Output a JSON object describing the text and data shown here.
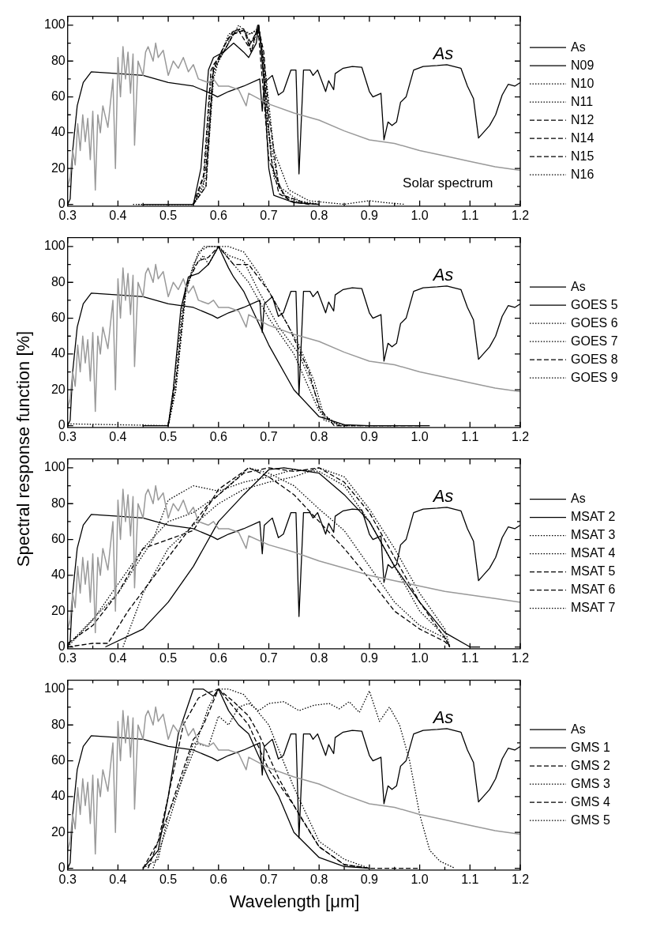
{
  "chart_data": [
    {
      "type": "line",
      "legend": "right",
      "marker": "none",
      "grid": false,
      "xlim": [
        0.3,
        1.2
      ],
      "ylim": [
        -1,
        105
      ],
      "xticks": [
        0.3,
        {
          "value": 0.35,
          "label": null
        },
        0.4,
        {
          "value": 0.45,
          "label": null
        },
        0.5,
        {
          "value": 0.55,
          "label": null
        },
        0.6,
        {
          "value": 0.65,
          "label": null
        },
        0.7,
        {
          "value": 0.75,
          "label": null
        },
        0.8,
        {
          "value": 0.85,
          "label": null
        },
        0.9,
        {
          "value": 0.95,
          "label": null
        },
        {
          "value": 1.0,
          "label": "1.0"
        },
        {
          "value": 1.05,
          "label": null
        },
        1.1,
        {
          "value": 1.15,
          "label": null
        },
        1.2
      ],
      "yticks": [
        0,
        {
          "value": 10,
          "label": null
        },
        20,
        {
          "value": 30,
          "label": null
        },
        40,
        {
          "value": 50,
          "label": null
        },
        60,
        {
          "value": 70,
          "label": null
        },
        80,
        {
          "value": 90,
          "label": null
        },
        100
      ],
      "annotations": [
        "As",
        "Solar spectrum"
      ],
      "series": [
        {
          "color": "#999999",
          "line_style": "solid",
          "x": [
            0.3,
            0.305,
            0.31,
            0.315,
            0.32,
            0.325,
            0.33,
            0.335,
            0.34,
            0.345,
            0.35,
            0.355,
            0.36,
            0.365,
            0.37,
            0.38,
            0.39,
            0.395,
            0.4,
            0.405,
            0.41,
            0.415,
            0.42,
            0.425,
            0.43,
            0.433,
            0.44,
            0.45,
            0.455,
            0.46,
            0.47,
            0.475,
            0.48,
            0.49,
            0.5,
            0.51,
            0.52,
            0.53,
            0.54,
            0.55,
            0.56,
            0.58,
            0.59,
            0.6,
            0.62,
            0.64,
            0.655,
            0.66,
            0.7,
            0.75,
            0.8,
            0.85,
            0.9,
            0.95,
            1.0,
            1.05,
            1.1,
            1.15,
            1.2
          ],
          "values": [
            10,
            15,
            30,
            22,
            45,
            30,
            50,
            35,
            48,
            25,
            52,
            8,
            50,
            40,
            55,
            43,
            70,
            20,
            82,
            60,
            88,
            70,
            85,
            62,
            84,
            33,
            80,
            72,
            85,
            88,
            80,
            90,
            82,
            86,
            72,
            80,
            76,
            82,
            74,
            78,
            70,
            68,
            70,
            66,
            66,
            64,
            55,
            62,
            56,
            51,
            47,
            41,
            36,
            34,
            30,
            27,
            24,
            21,
            19
          ]
        },
        {
          "name": "As",
          "color": "#000000",
          "line_style": "solid",
          "x": [
            0.3,
            0.305,
            0.31,
            0.319,
            0.331,
            0.347,
            0.4,
            0.45,
            0.5,
            0.55,
            0.588,
            0.598,
            0.62,
            0.65,
            0.682,
            0.687,
            0.691,
            0.707,
            0.719,
            0.729,
            0.744,
            0.754,
            0.76,
            0.769,
            0.782,
            0.788,
            0.797,
            0.813,
            0.819,
            0.829,
            0.832,
            0.848,
            0.866,
            0.885,
            0.9,
            0.907,
            0.923,
            0.929,
            0.937,
            0.945,
            0.954,
            0.962,
            0.973,
            0.981,
            0.988,
            1.007,
            1.035,
            1.054,
            1.082,
            1.095,
            1.107,
            1.117,
            1.139,
            1.151,
            1.164,
            1.176,
            1.189,
            1.2
          ],
          "values": [
            0,
            3,
            30,
            55,
            68,
            74,
            73,
            72,
            68,
            66,
            61.5,
            60,
            63,
            66,
            70,
            52,
            68,
            72,
            61,
            63,
            75,
            75,
            17,
            75,
            75,
            72,
            75,
            63,
            69,
            64,
            73,
            76,
            77,
            76.5,
            63,
            60,
            62,
            36,
            46,
            44,
            46,
            57,
            60,
            68,
            75,
            77,
            77.5,
            78,
            76,
            66,
            59,
            37,
            44,
            50,
            61,
            67,
            66,
            68
          ]
        },
        {
          "name": "N09",
          "color": "#000000",
          "line_style": "solid",
          "x": [
            0.45,
            0.55,
            0.565,
            0.58,
            0.59,
            0.61,
            0.63,
            0.65,
            0.66,
            0.675,
            0.68,
            0.69,
            0.7,
            0.71,
            0.75,
            0.8
          ],
          "values": [
            0,
            0,
            20,
            75,
            82,
            85,
            90,
            85,
            82,
            90,
            100,
            70,
            20,
            5,
            1,
            0
          ]
        },
        {
          "name": "N10",
          "color": "#000000",
          "line_style": "dotted",
          "x": [
            0.44,
            0.55,
            0.57,
            0.585,
            0.6,
            0.62,
            0.64,
            0.66,
            0.675,
            0.685,
            0.695,
            0.71,
            0.73,
            0.76,
            0.8
          ],
          "values": [
            0,
            0,
            10,
            70,
            80,
            95,
            98,
            95,
            97,
            90,
            50,
            15,
            5,
            1,
            0
          ]
        },
        {
          "name": "N11",
          "color": "#000000",
          "line_style": "dotted",
          "x": [
            0.55,
            0.575,
            0.59,
            0.6,
            0.62,
            0.64,
            0.655,
            0.665,
            0.675,
            0.68,
            0.69,
            0.7,
            0.72,
            0.76,
            0.8
          ],
          "values": [
            0,
            10,
            70,
            80,
            90,
            100,
            96,
            85,
            95,
            99,
            80,
            40,
            10,
            2,
            0
          ]
        },
        {
          "name": "N12",
          "color": "#000000",
          "line_style": "dashed",
          "x": [
            0.55,
            0.57,
            0.585,
            0.6,
            0.62,
            0.64,
            0.66,
            0.675,
            0.68,
            0.69,
            0.705,
            0.72,
            0.75,
            0.8
          ],
          "values": [
            0,
            15,
            75,
            82,
            93,
            97,
            88,
            96,
            100,
            75,
            25,
            6,
            1,
            0
          ]
        },
        {
          "name": "N14",
          "color": "#000000",
          "line_style": "dashed",
          "x": [
            0.55,
            0.575,
            0.59,
            0.61,
            0.63,
            0.65,
            0.665,
            0.68,
            0.69,
            0.7,
            0.72,
            0.74,
            0.78
          ],
          "values": [
            0,
            20,
            78,
            85,
            95,
            97,
            90,
            98,
            85,
            50,
            10,
            2,
            0
          ]
        },
        {
          "name": "N15",
          "color": "#000000",
          "line_style": "dashed",
          "x": [
            0.55,
            0.575,
            0.59,
            0.61,
            0.63,
            0.65,
            0.665,
            0.678,
            0.69,
            0.7,
            0.73,
            0.78
          ],
          "values": [
            0,
            10,
            75,
            88,
            97,
            98,
            85,
            100,
            60,
            25,
            5,
            0
          ]
        },
        {
          "name": "N16",
          "color": "#000000",
          "line_style": "dotted",
          "x": [
            0.43,
            0.55,
            0.575,
            0.59,
            0.61,
            0.63,
            0.65,
            0.665,
            0.68,
            0.695,
            0.71,
            0.74,
            0.78,
            0.85,
            0.9,
            0.93,
            0.97
          ],
          "values": [
            0,
            0,
            15,
            75,
            85,
            96,
            97,
            95,
            99,
            70,
            30,
            8,
            2,
            0,
            2,
            1,
            0
          ]
        }
      ]
    },
    {
      "type": "line",
      "legend": "right",
      "marker": "none",
      "grid": false,
      "ylabel": "Spectral response function [%]",
      "xlim": [
        0.3,
        1.2
      ],
      "ylim": [
        -1,
        105
      ],
      "xticks": [
        0.3,
        {
          "value": 0.35,
          "label": null
        },
        0.4,
        {
          "value": 0.45,
          "label": null
        },
        0.5,
        {
          "value": 0.55,
          "label": null
        },
        0.6,
        {
          "value": 0.65,
          "label": null
        },
        0.7,
        {
          "value": 0.75,
          "label": null
        },
        0.8,
        {
          "value": 0.85,
          "label": null
        },
        0.9,
        {
          "value": 0.95,
          "label": null
        },
        {
          "value": 1.0,
          "label": "1.0"
        },
        {
          "value": 1.05,
          "label": null
        },
        1.1,
        {
          "value": 1.15,
          "label": null
        },
        1.2
      ],
      "yticks": [
        0,
        {
          "value": 10,
          "label": null
        },
        20,
        {
          "value": 30,
          "label": null
        },
        40,
        {
          "value": 50,
          "label": null
        },
        60,
        {
          "value": 70,
          "label": null
        },
        80,
        {
          "value": 90,
          "label": null
        },
        100
      ],
      "annotations": [
        "As"
      ],
      "series": [
        {
          "color": "#999999",
          "line_style": "solid",
          "x": [
            0.3,
            0.305,
            0.31,
            0.315,
            0.32,
            0.325,
            0.33,
            0.335,
            0.34,
            0.345,
            0.35,
            0.355,
            0.36,
            0.365,
            0.37,
            0.38,
            0.39,
            0.395,
            0.4,
            0.405,
            0.41,
            0.415,
            0.42,
            0.425,
            0.43,
            0.433,
            0.44,
            0.45,
            0.455,
            0.46,
            0.47,
            0.475,
            0.48,
            0.49,
            0.5,
            0.51,
            0.52,
            0.53,
            0.54,
            0.55,
            0.56,
            0.58,
            0.59,
            0.6,
            0.62,
            0.64,
            0.655,
            0.66,
            0.7,
            0.75,
            0.8,
            0.85,
            0.9,
            0.95,
            1.0,
            1.05,
            1.1,
            1.15,
            1.2
          ],
          "values": [
            10,
            15,
            30,
            22,
            45,
            30,
            50,
            35,
            48,
            25,
            52,
            8,
            50,
            40,
            55,
            43,
            70,
            20,
            82,
            60,
            88,
            70,
            85,
            62,
            84,
            33,
            80,
            72,
            85,
            88,
            80,
            90,
            82,
            86,
            72,
            80,
            76,
            82,
            74,
            78,
            70,
            68,
            70,
            66,
            66,
            64,
            55,
            62,
            56,
            51,
            47,
            41,
            36,
            34,
            30,
            27,
            24,
            21,
            19
          ]
        },
        {
          "name": "As",
          "color": "#000000",
          "line_style": "solid",
          "x": [
            0.3,
            0.305,
            0.31,
            0.319,
            0.331,
            0.347,
            0.4,
            0.45,
            0.5,
            0.55,
            0.588,
            0.598,
            0.62,
            0.65,
            0.682,
            0.687,
            0.691,
            0.707,
            0.719,
            0.729,
            0.744,
            0.754,
            0.76,
            0.769,
            0.782,
            0.788,
            0.797,
            0.813,
            0.819,
            0.829,
            0.832,
            0.848,
            0.866,
            0.885,
            0.9,
            0.907,
            0.923,
            0.929,
            0.937,
            0.945,
            0.954,
            0.962,
            0.973,
            0.981,
            0.988,
            1.007,
            1.035,
            1.054,
            1.082,
            1.095,
            1.107,
            1.117,
            1.139,
            1.151,
            1.164,
            1.176,
            1.189,
            1.2
          ],
          "values": [
            0,
            3,
            30,
            55,
            68,
            74,
            73,
            72,
            68,
            66,
            61.5,
            60,
            63,
            66,
            70,
            52,
            68,
            72,
            61,
            63,
            75,
            75,
            17,
            75,
            75,
            72,
            75,
            63,
            69,
            64,
            73,
            76,
            77,
            76.5,
            63,
            60,
            62,
            36,
            46,
            44,
            46,
            57,
            60,
            68,
            75,
            77,
            77.5,
            78,
            76,
            66,
            59,
            37,
            44,
            50,
            61,
            67,
            66,
            68
          ]
        },
        {
          "name": "GOES 5",
          "color": "#000000",
          "line_style": "solid",
          "x": [
            0.45,
            0.5,
            0.51,
            0.525,
            0.54,
            0.56,
            0.58,
            0.6,
            0.62,
            0.63,
            0.65,
            0.7,
            0.75,
            0.8,
            0.85,
            0.9,
            1.02
          ],
          "values": [
            0,
            0,
            20,
            65,
            83,
            85,
            90,
            100,
            88,
            83,
            75,
            45,
            20,
            5,
            0.5,
            0,
            0
          ]
        },
        {
          "name": "GOES 6",
          "color": "#000000",
          "line_style": "dotted",
          "x": [
            0.3,
            0.5,
            0.51,
            0.53,
            0.55,
            0.57,
            0.6,
            0.63,
            0.66,
            0.7,
            0.75,
            0.8,
            0.84,
            0.95
          ],
          "values": [
            1,
            0,
            20,
            70,
            90,
            100,
            100,
            90,
            80,
            60,
            40,
            8,
            0,
            0
          ]
        },
        {
          "name": "GOES 7",
          "color": "#000000",
          "line_style": "dotted",
          "x": [
            0.5,
            0.515,
            0.535,
            0.56,
            0.58,
            0.62,
            0.65,
            0.68,
            0.72,
            0.76,
            0.79,
            0.81,
            0.84
          ],
          "values": [
            0,
            20,
            75,
            97,
            100,
            100,
            97,
            85,
            65,
            45,
            25,
            5,
            0
          ]
        },
        {
          "name": "GOES 8",
          "color": "#000000",
          "line_style": "dashed",
          "x": [
            0.5,
            0.515,
            0.535,
            0.56,
            0.58,
            0.6,
            0.63,
            0.66,
            0.7,
            0.74,
            0.78,
            0.8,
            0.83,
            1.0
          ],
          "values": [
            0,
            25,
            78,
            92,
            94,
            100,
            90,
            90,
            75,
            55,
            30,
            10,
            0,
            0
          ]
        },
        {
          "name": "GOES 9",
          "color": "#000000",
          "line_style": "dotted",
          "x": [
            0.5,
            0.515,
            0.535,
            0.55,
            0.57,
            0.58,
            0.6,
            0.62,
            0.65,
            0.68,
            0.72,
            0.76,
            0.79,
            0.81,
            0.85
          ],
          "values": [
            0,
            20,
            75,
            88,
            95,
            90,
            100,
            95,
            92,
            75,
            55,
            40,
            20,
            3,
            0
          ]
        }
      ]
    },
    {
      "type": "line",
      "legend": "right",
      "marker": "none",
      "grid": false,
      "xlim": [
        0.3,
        1.2
      ],
      "ylim": [
        -1,
        105
      ],
      "xticks": [
        0.3,
        {
          "value": 0.35,
          "label": null
        },
        0.4,
        {
          "value": 0.45,
          "label": null
        },
        0.5,
        {
          "value": 0.55,
          "label": null
        },
        0.6,
        {
          "value": 0.65,
          "label": null
        },
        0.7,
        {
          "value": 0.75,
          "label": null
        },
        0.8,
        {
          "value": 0.85,
          "label": null
        },
        0.9,
        {
          "value": 0.95,
          "label": null
        },
        {
          "value": 1.0,
          "label": "1.0"
        },
        {
          "value": 1.05,
          "label": null
        },
        1.1,
        {
          "value": 1.15,
          "label": null
        },
        1.2
      ],
      "yticks": [
        0,
        {
          "value": 10,
          "label": null
        },
        20,
        {
          "value": 30,
          "label": null
        },
        40,
        {
          "value": 50,
          "label": null
        },
        60,
        {
          "value": 70,
          "label": null
        },
        80,
        {
          "value": 90,
          "label": null
        },
        100
      ],
      "annotations": [
        "As"
      ],
      "series": [
        {
          "color": "#999999",
          "line_style": "solid",
          "x": [
            0.3,
            0.305,
            0.31,
            0.315,
            0.32,
            0.325,
            0.33,
            0.335,
            0.34,
            0.345,
            0.35,
            0.355,
            0.36,
            0.365,
            0.37,
            0.38,
            0.39,
            0.395,
            0.4,
            0.405,
            0.41,
            0.415,
            0.42,
            0.425,
            0.43,
            0.433,
            0.44,
            0.45,
            0.455,
            0.46,
            0.47,
            0.475,
            0.48,
            0.49,
            0.5,
            0.51,
            0.52,
            0.53,
            0.54,
            0.55,
            0.56,
            0.58,
            0.59,
            0.6,
            0.62,
            0.64,
            0.655,
            0.66,
            0.7,
            0.75,
            0.8,
            0.85,
            0.9,
            0.95,
            1.0,
            1.05,
            1.1,
            1.15,
            1.2
          ],
          "values": [
            10,
            15,
            30,
            22,
            45,
            30,
            50,
            35,
            48,
            25,
            52,
            8,
            50,
            40,
            55,
            43,
            70,
            20,
            82,
            60,
            88,
            70,
            85,
            62,
            84,
            33,
            80,
            72,
            85,
            88,
            80,
            90,
            82,
            86,
            72,
            80,
            76,
            82,
            74,
            78,
            70,
            68,
            70,
            66,
            66,
            64,
            55,
            62,
            57,
            53,
            48,
            44,
            40,
            37,
            34,
            31,
            29,
            27,
            25
          ]
        },
        {
          "name": "As",
          "color": "#000000",
          "line_style": "solid",
          "x": [
            0.3,
            0.305,
            0.31,
            0.319,
            0.331,
            0.347,
            0.4,
            0.45,
            0.5,
            0.55,
            0.588,
            0.598,
            0.62,
            0.65,
            0.682,
            0.687,
            0.691,
            0.707,
            0.719,
            0.729,
            0.744,
            0.754,
            0.76,
            0.769,
            0.782,
            0.788,
            0.797,
            0.813,
            0.819,
            0.829,
            0.832,
            0.848,
            0.866,
            0.885,
            0.9,
            0.907,
            0.923,
            0.929,
            0.937,
            0.945,
            0.954,
            0.962,
            0.973,
            0.981,
            0.988,
            1.007,
            1.035,
            1.054,
            1.082,
            1.095,
            1.107,
            1.117,
            1.139,
            1.151,
            1.164,
            1.176,
            1.189,
            1.2
          ],
          "values": [
            0,
            3,
            30,
            55,
            68,
            74,
            73,
            72,
            68,
            66,
            61.5,
            60,
            63,
            66,
            70,
            52,
            68,
            72,
            61,
            63,
            75,
            75,
            17,
            75,
            75,
            72,
            75,
            63,
            69,
            64,
            73,
            76,
            77,
            76.5,
            63,
            60,
            62,
            36,
            46,
            44,
            46,
            57,
            60,
            68,
            75,
            77,
            77.5,
            78,
            76,
            66,
            59,
            37,
            44,
            50,
            61,
            67,
            66,
            68
          ]
        },
        {
          "name": "MSAT 2",
          "color": "#000000",
          "line_style": "solid",
          "x": [
            0.375,
            0.45,
            0.5,
            0.55,
            0.6,
            0.65,
            0.7,
            0.73,
            0.8,
            0.85,
            0.9,
            0.95,
            1.0,
            1.05,
            1.1,
            1.12
          ],
          "values": [
            0,
            10,
            25,
            45,
            70,
            85,
            99,
            100,
            97,
            85,
            70,
            45,
            25,
            8,
            0,
            0
          ]
        },
        {
          "name": "MSAT 3",
          "color": "#000000",
          "line_style": "dotted",
          "x": [
            0.3,
            0.35,
            0.4,
            0.45,
            0.5,
            0.55,
            0.6,
            0.66,
            0.7,
            0.75,
            0.8,
            0.85,
            0.9,
            0.95,
            1.0,
            1.05,
            1.06
          ],
          "values": [
            0,
            15,
            35,
            55,
            70,
            75,
            85,
            100,
            97,
            90,
            77,
            65,
            45,
            25,
            12,
            5,
            0
          ]
        },
        {
          "name": "MSAT 4",
          "color": "#000000",
          "line_style": "dotted",
          "x": [
            0.3,
            0.4,
            0.47,
            0.5,
            0.55,
            0.6,
            0.65,
            0.7,
            0.75,
            0.8,
            0.85,
            0.9,
            0.95,
            1.0,
            1.05,
            1.06
          ],
          "values": [
            1,
            30,
            60,
            82,
            90,
            87,
            92,
            95,
            99,
            98,
            90,
            70,
            45,
            20,
            6,
            0
          ]
        },
        {
          "name": "MSAT 5",
          "color": "#000000",
          "line_style": "dashed",
          "x": [
            0.3,
            0.35,
            0.38,
            0.42,
            0.5,
            0.58,
            0.65,
            0.7,
            0.75,
            0.8,
            0.85,
            0.9,
            0.95,
            1.0,
            1.05,
            1.06
          ],
          "values": [
            0,
            2,
            2,
            20,
            50,
            80,
            97,
            100,
            98,
            100,
            92,
            75,
            50,
            25,
            5,
            0
          ]
        },
        {
          "name": "MSAT 6",
          "color": "#000000",
          "line_style": "dashed",
          "x": [
            0.3,
            0.35,
            0.4,
            0.45,
            0.5,
            0.55,
            0.6,
            0.66,
            0.7,
            0.75,
            0.8,
            0.85,
            0.9,
            0.95,
            1.0,
            1.05,
            1.06
          ],
          "values": [
            2,
            12,
            30,
            55,
            60,
            65,
            88,
            100,
            95,
            85,
            70,
            55,
            38,
            20,
            10,
            3,
            0
          ]
        },
        {
          "name": "MSAT 7",
          "color": "#000000",
          "line_style": "dotted",
          "x": [
            0.41,
            0.45,
            0.5,
            0.55,
            0.6,
            0.65,
            0.7,
            0.75,
            0.8,
            0.85,
            0.9,
            0.95,
            1.0,
            1.05,
            1.06
          ],
          "values": [
            0,
            30,
            55,
            68,
            80,
            88,
            92,
            95,
            100,
            95,
            77,
            55,
            30,
            10,
            0
          ]
        }
      ]
    },
    {
      "type": "line",
      "legend": "right",
      "marker": "none",
      "grid": false,
      "xlabel": "Wavelength [μm]",
      "xlim": [
        0.3,
        1.2
      ],
      "ylim": [
        -1,
        105
      ],
      "xticks": [
        0.3,
        {
          "value": 0.35,
          "label": null
        },
        0.4,
        {
          "value": 0.45,
          "label": null
        },
        0.5,
        {
          "value": 0.55,
          "label": null
        },
        0.6,
        {
          "value": 0.65,
          "label": null
        },
        0.7,
        {
          "value": 0.75,
          "label": null
        },
        0.8,
        {
          "value": 0.85,
          "label": null
        },
        0.9,
        {
          "value": 0.95,
          "label": null
        },
        {
          "value": 1.0,
          "label": "1.0"
        },
        {
          "value": 1.05,
          "label": null
        },
        1.1,
        {
          "value": 1.15,
          "label": null
        },
        1.2
      ],
      "yticks": [
        0,
        {
          "value": 10,
          "label": null
        },
        20,
        {
          "value": 30,
          "label": null
        },
        40,
        {
          "value": 50,
          "label": null
        },
        60,
        {
          "value": 70,
          "label": null
        },
        80,
        {
          "value": 90,
          "label": null
        },
        100
      ],
      "annotations": [
        "As"
      ],
      "series": [
        {
          "color": "#999999",
          "line_style": "solid",
          "x": [
            0.3,
            0.305,
            0.31,
            0.315,
            0.32,
            0.325,
            0.33,
            0.335,
            0.34,
            0.345,
            0.35,
            0.355,
            0.36,
            0.365,
            0.37,
            0.38,
            0.39,
            0.395,
            0.4,
            0.405,
            0.41,
            0.415,
            0.42,
            0.425,
            0.43,
            0.433,
            0.44,
            0.45,
            0.455,
            0.46,
            0.47,
            0.475,
            0.48,
            0.49,
            0.5,
            0.51,
            0.52,
            0.53,
            0.54,
            0.55,
            0.56,
            0.58,
            0.59,
            0.6,
            0.62,
            0.64,
            0.655,
            0.66,
            0.7,
            0.75,
            0.8,
            0.85,
            0.9,
            0.95,
            1.0,
            1.05,
            1.1,
            1.15,
            1.2
          ],
          "values": [
            10,
            15,
            30,
            22,
            45,
            30,
            50,
            35,
            48,
            25,
            52,
            8,
            50,
            40,
            55,
            43,
            70,
            20,
            82,
            60,
            88,
            70,
            85,
            62,
            84,
            33,
            80,
            72,
            85,
            88,
            80,
            90,
            82,
            86,
            72,
            80,
            76,
            82,
            74,
            78,
            70,
            68,
            70,
            66,
            66,
            64,
            55,
            62,
            56,
            51,
            47,
            41,
            36,
            34,
            30,
            27,
            24,
            21,
            19
          ]
        },
        {
          "name": "As",
          "color": "#000000",
          "line_style": "solid",
          "x": [
            0.3,
            0.305,
            0.31,
            0.319,
            0.331,
            0.347,
            0.4,
            0.45,
            0.5,
            0.55,
            0.588,
            0.598,
            0.62,
            0.65,
            0.682,
            0.687,
            0.691,
            0.707,
            0.719,
            0.729,
            0.744,
            0.754,
            0.76,
            0.769,
            0.782,
            0.788,
            0.797,
            0.813,
            0.819,
            0.829,
            0.832,
            0.848,
            0.866,
            0.885,
            0.9,
            0.907,
            0.923,
            0.929,
            0.937,
            0.945,
            0.954,
            0.962,
            0.973,
            0.981,
            0.988,
            1.007,
            1.035,
            1.054,
            1.082,
            1.095,
            1.107,
            1.117,
            1.139,
            1.151,
            1.164,
            1.176,
            1.189,
            1.2
          ],
          "values": [
            0,
            3,
            30,
            55,
            68,
            74,
            73,
            72,
            68,
            66,
            61.5,
            60,
            63,
            66,
            70,
            52,
            68,
            72,
            61,
            63,
            75,
            75,
            17,
            75,
            75,
            72,
            75,
            63,
            69,
            64,
            73,
            76,
            77,
            76.5,
            63,
            60,
            62,
            36,
            46,
            44,
            46,
            57,
            60,
            68,
            75,
            77,
            77.5,
            78,
            76,
            66,
            59,
            37,
            44,
            50,
            61,
            67,
            66,
            68
          ]
        },
        {
          "name": "GMS 1",
          "color": "#000000",
          "line_style": "solid",
          "x": [
            0.45,
            0.48,
            0.5,
            0.52,
            0.55,
            0.57,
            0.59,
            0.6,
            0.62,
            0.64,
            0.66,
            0.7,
            0.72,
            0.75,
            0.8,
            0.85,
            0.9
          ],
          "values": [
            0,
            10,
            40,
            75,
            100,
            100,
            96,
            100,
            88,
            80,
            75,
            50,
            40,
            20,
            6,
            1,
            0
          ]
        },
        {
          "name": "GMS 2",
          "color": "#000000",
          "line_style": "dashed",
          "x": [
            0.45,
            0.48,
            0.5,
            0.53,
            0.56,
            0.58,
            0.6,
            0.63,
            0.66,
            0.7,
            0.75,
            0.8,
            0.85,
            0.9,
            1.0
          ],
          "values": [
            0,
            15,
            40,
            80,
            95,
            98,
            100,
            90,
            80,
            55,
            35,
            12,
            2,
            0,
            0
          ]
        },
        {
          "name": "GMS 3",
          "color": "#000000",
          "line_style": "dotted",
          "x": [
            0.45,
            0.48,
            0.5,
            0.55,
            0.58,
            0.6,
            0.62,
            0.65,
            0.7,
            0.75,
            0.8,
            0.85,
            0.9
          ],
          "values": [
            0,
            5,
            30,
            65,
            90,
            100,
            100,
            97,
            80,
            45,
            15,
            5,
            0
          ]
        },
        {
          "name": "GMS 4",
          "color": "#000000",
          "line_style": "dashed",
          "x": [
            0.46,
            0.5,
            0.55,
            0.56,
            0.57,
            0.6,
            0.63,
            0.66,
            0.68,
            0.72,
            0.76,
            0.8,
            0.85,
            0.9
          ],
          "values": [
            0,
            30,
            72,
            75,
            80,
            100,
            93,
            85,
            75,
            50,
            30,
            12,
            2,
            0
          ]
        },
        {
          "name": "GMS 5",
          "color": "#000000",
          "line_style": "dotted",
          "x": [
            0.47,
            0.5,
            0.55,
            0.58,
            0.6,
            0.62,
            0.64,
            0.66,
            0.68,
            0.7,
            0.73,
            0.76,
            0.79,
            0.82,
            0.84,
            0.86,
            0.88,
            0.9,
            0.92,
            0.94,
            0.96,
            0.98,
            1.0,
            1.02,
            1.04,
            1.07
          ],
          "values": [
            0,
            25,
            70,
            68,
            85,
            80,
            90,
            92,
            88,
            92,
            93,
            88,
            91,
            92,
            89,
            93,
            87,
            99,
            82,
            90,
            80,
            60,
            30,
            10,
            4,
            0
          ]
        }
      ]
    }
  ]
}
